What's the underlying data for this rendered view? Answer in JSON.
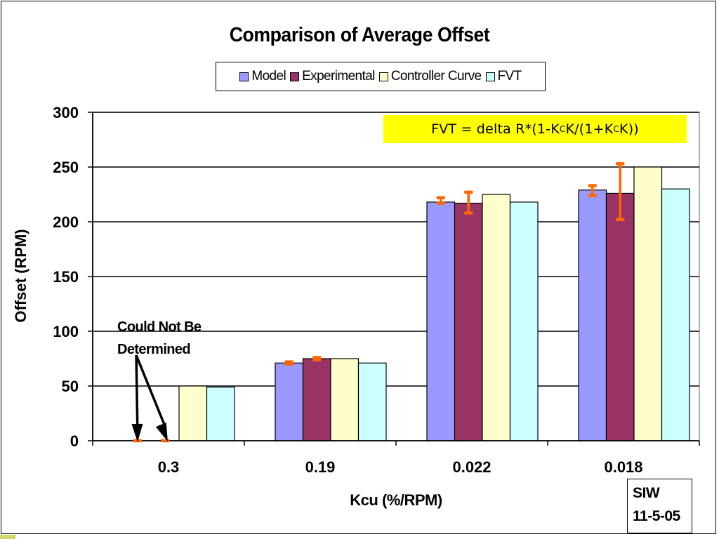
{
  "chart_data": {
    "type": "bar",
    "title": "Comparison of Average Offset",
    "xlabel": "Kcu (%/RPM)",
    "ylabel": "Offset (RPM)",
    "ylim": [
      0,
      300
    ],
    "yticks": [
      0,
      50,
      100,
      150,
      200,
      250,
      300
    ],
    "grid": true,
    "legend_position": "top-center",
    "categories": [
      "0.3",
      "0.19",
      "0.022",
      "0.018"
    ],
    "series": [
      {
        "name": "Model",
        "color": "#9999ff",
        "values": [
          0,
          71,
          218,
          229
        ],
        "error_bars": [
          null,
          {
            "low": 70,
            "high": 72
          },
          {
            "low": 217,
            "high": 222
          },
          {
            "low": 224,
            "high": 233
          }
        ]
      },
      {
        "name": "Experimental",
        "color": "#993366",
        "values": [
          0,
          75,
          217,
          226
        ],
        "error_bars": [
          null,
          {
            "low": 74,
            "high": 76
          },
          {
            "low": 208,
            "high": 227
          },
          {
            "low": 202,
            "high": 253
          }
        ]
      },
      {
        "name": "Controller Curve",
        "color": "#ffffcc",
        "values": [
          50,
          75,
          225,
          250
        ],
        "error_bars": [
          null,
          null,
          null,
          null
        ]
      },
      {
        "name": "FVT",
        "color": "#ccffff",
        "values": [
          49,
          71,
          218,
          230
        ],
        "error_bars": [
          null,
          null,
          null,
          null
        ]
      }
    ],
    "zero_markers": [
      {
        "series": "Model",
        "category": "0.3",
        "value": 0
      },
      {
        "series": "Experimental",
        "category": "0.3",
        "value": 0
      }
    ],
    "error_bar_color": "#ff6600",
    "annotation": {
      "line1": "Could Not Be",
      "line2": "Determined"
    }
  },
  "formula": {
    "prefix": "FVT = delta R*(1-K",
    "sub1": "C",
    "mid": "K/(1+K",
    "sub2": "C",
    "suffix": "K))"
  },
  "signature": {
    "line1": "SIW",
    "line2": "11-5-05"
  },
  "colors": {
    "formula_bg": "#ffff00",
    "error_bar": "#ff6600"
  }
}
